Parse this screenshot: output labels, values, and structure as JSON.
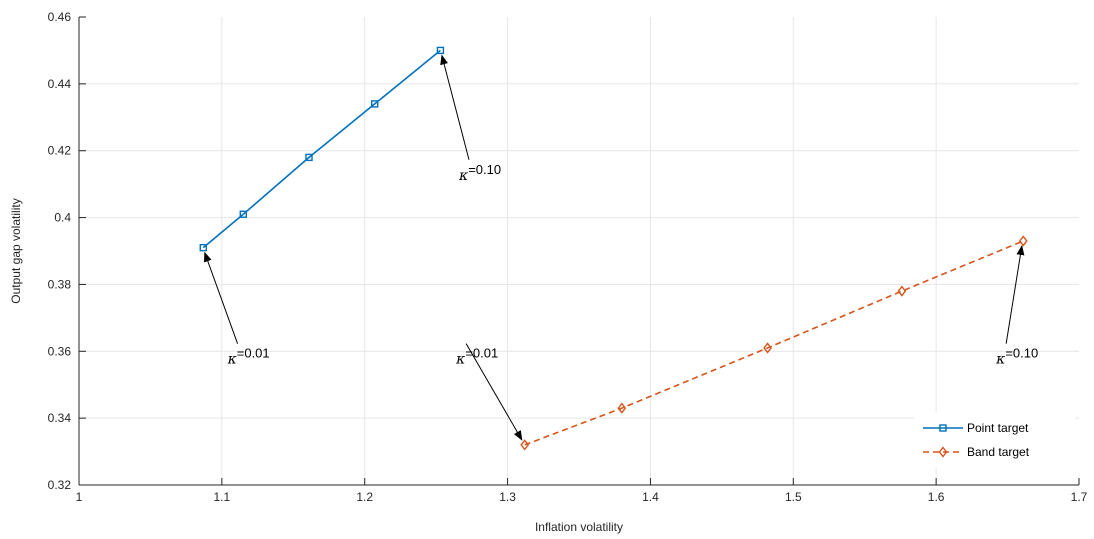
{
  "chart_data": {
    "type": "line",
    "xlabel": "Inflation volatility",
    "ylabel": "Output gap volatility",
    "xlim": [
      1,
      1.7
    ],
    "ylim": [
      0.32,
      0.46
    ],
    "xticks": [
      "1",
      "1.1",
      "1.2",
      "1.3",
      "1.4",
      "1.5",
      "1.6",
      "1.7"
    ],
    "yticks": [
      "0.32",
      "0.34",
      "0.36",
      "0.38",
      "0.4",
      "0.42",
      "0.44",
      "0.46"
    ],
    "grid": true,
    "legend_position": "bottom-right",
    "series": [
      {
        "name": "Point target",
        "color": "#0072BD",
        "marker": "square",
        "line_style": "solid",
        "x": [
          1.087,
          1.115,
          1.161,
          1.207,
          1.253
        ],
        "y": [
          0.391,
          0.401,
          0.418,
          0.434,
          0.45
        ]
      },
      {
        "name": "Band target",
        "color": "#D95319",
        "marker": "diamond",
        "line_style": "dashed",
        "x": [
          1.312,
          1.38,
          1.482,
          1.576,
          1.661
        ],
        "y": [
          0.332,
          0.343,
          0.361,
          0.378,
          0.393
        ]
      }
    ],
    "annotations": [
      {
        "symbol": "κ",
        "text": "=0.01",
        "label_x": 1.104,
        "label_y": 0.3575,
        "arrow_to_x": 1.088,
        "arrow_to_y": 0.3895
      },
      {
        "symbol": "κ",
        "text": "=0.10",
        "label_x": 1.266,
        "label_y": 0.4125,
        "arrow_to_x": 1.254,
        "arrow_to_y": 0.4485
      },
      {
        "symbol": "κ",
        "text": "=0.01",
        "label_x": 1.264,
        "label_y": 0.3575,
        "arrow_to_x": 1.31,
        "arrow_to_y": 0.3335
      },
      {
        "symbol": "κ",
        "text": "=0.10",
        "label_x": 1.642,
        "label_y": 0.3575,
        "arrow_to_x": 1.66,
        "arrow_to_y": 0.3915
      }
    ]
  }
}
